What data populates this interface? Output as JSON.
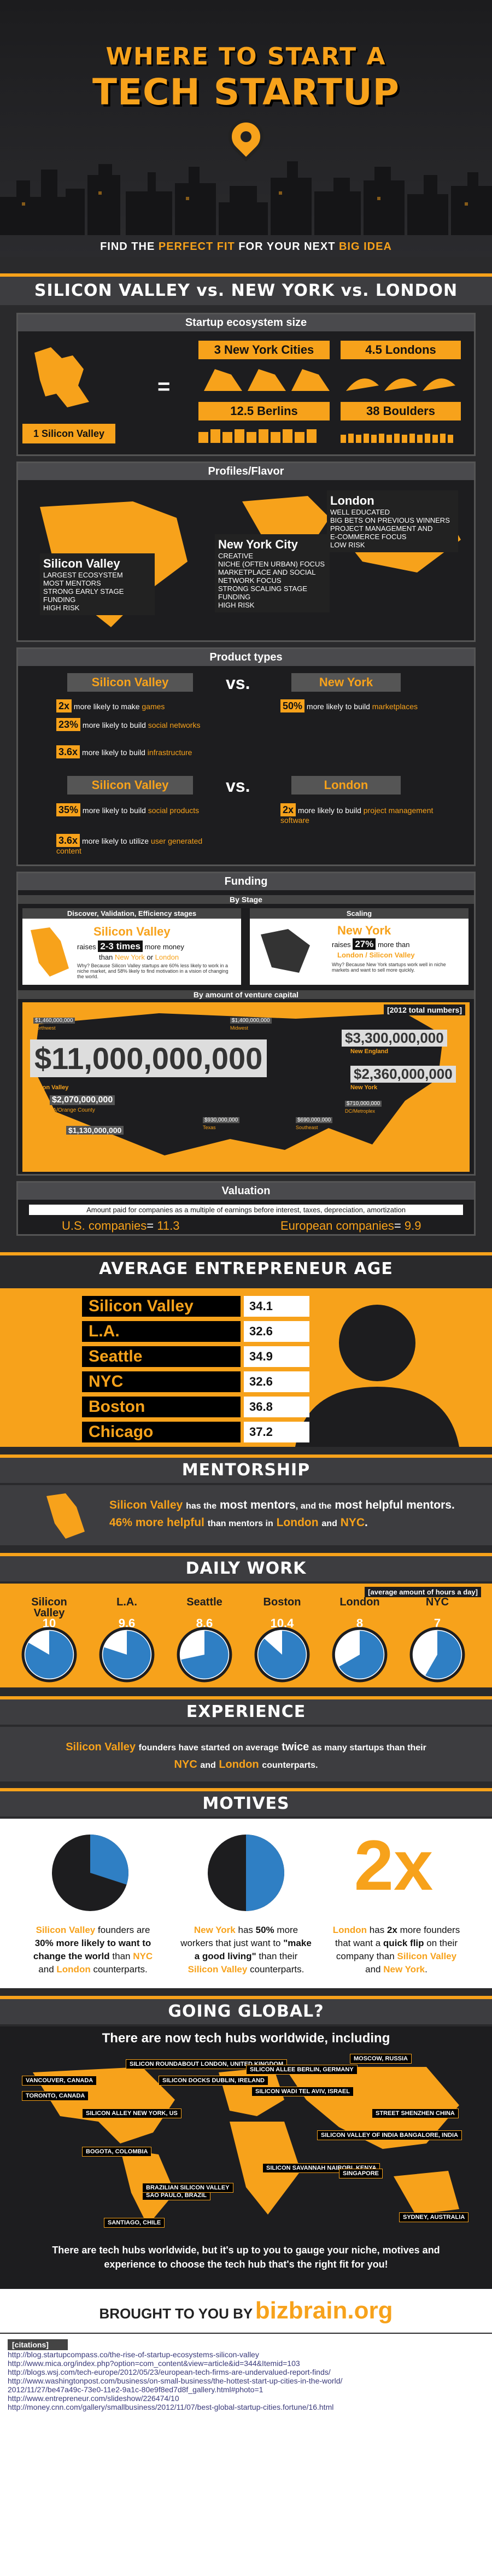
{
  "header": {
    "line1": "WHERE TO START A",
    "line2": "TECH STARTUP",
    "subtitle_pre": "FIND THE ",
    "subtitle_em1": "PERFECT FIT",
    "subtitle_mid": " FOR YOUR NEXT ",
    "subtitle_em2": "BIG IDEA"
  },
  "vs_title": "SILICON VALLEY vs. NEW YORK vs. LONDON",
  "ecosystem": {
    "title": "Startup ecosystem size",
    "nyc": "3 New York Cities",
    "london": "4.5 Londons",
    "berlin": "12.5 Berlins",
    "boulder": "38 Boulders",
    "sv": "1 Silicon Valley",
    "eq": "="
  },
  "profiles": {
    "title": "Profiles/Flavor",
    "london": {
      "name": "London",
      "items": [
        "WELL EDUCATED",
        "BIG BETS ON PREVIOUS WINNERS",
        "PROJECT MANAGEMENT AND",
        "E-COMMERCE FOCUS",
        "LOW RISK"
      ]
    },
    "ny": {
      "name": "New York City",
      "items": [
        "CREATIVE",
        "NICHE (OFTEN URBAN) FOCUS",
        "MARKETPLACE AND SOCIAL",
        "NETWORK FOCUS",
        "STRONG SCALING STAGE",
        "FUNDING",
        "HIGH RISK"
      ]
    },
    "sv": {
      "name": "Silicon Valley",
      "items": [
        "LARGEST ECOSYSTEM",
        "MOST MENTORS",
        "STRONG EARLY STAGE FUNDING",
        "HIGH RISK"
      ]
    }
  },
  "product": {
    "title": "Product types",
    "r1": {
      "left": "Silicon Valley",
      "vs": "vs.",
      "right": "New York",
      "l1n": "2x",
      "l1t": "more likely to make",
      "l1e": "games",
      "l2n": "23%",
      "l2t": "more likely to build",
      "l2e": "social networks",
      "l3n": "3.6x",
      "l3t": "more likely to build",
      "l3e": "infrastructure",
      "r1n": "50%",
      "r1t": "more likely to build",
      "r1e": "marketplaces"
    },
    "r2": {
      "left": "Silicon Valley",
      "vs": "vs.",
      "right": "London",
      "l1n": "35%",
      "l1t": "more likely to build",
      "l1e": "social products",
      "l2n": "3.6x",
      "l2t": "more likely to utilize",
      "l2e": "user generated content",
      "r1n": "2x",
      "r1t": "more likely to build",
      "r1e": "project management software"
    }
  },
  "funding": {
    "title": "Funding",
    "stage": "By Stage",
    "disc": {
      "title": "Discover, Validation, Efficiency stages",
      "name": "Silicon Valley",
      "raises": "raises",
      "amt": "2-3 times",
      "more": "more money",
      "than": "than",
      "ny": "New York",
      "or": "or",
      "lon": "London",
      "note": "Why? Because Silicon Valley startups are 60% less likely to work in a niche market, and 58% likely to find motivation in a vision of changing the world."
    },
    "scale": {
      "title": "Scaling",
      "name": "New York",
      "raises": "raises",
      "amt": "27%",
      "more": "more than",
      "cmp": "London / Silicon Valley",
      "note": "Why? Because New York startups work well in niche markets and want to sell more quickly."
    },
    "vc": {
      "title": "By amount of venture capital",
      "legend": "[2012 total numbers]",
      "total": "$11,000,000,000",
      "ne": "$3,300,000,000",
      "ne_lbl": "New England",
      "ny": "$2,360,000,000",
      "ny_lbl": "New York",
      "sv_lbl": "Silicon Valley",
      "la": "$2,070,000,000",
      "la_lbl": "LA/Orange County",
      "sd": "$1,130,000,000",
      "sd_lbl": "San Diego",
      "nw": "$1,460,000,000",
      "nw_lbl": "Northwest",
      "mw": "$1,400,000,000",
      "mw_lbl": "Midwest",
      "tx": "$930,000,000",
      "tx_lbl": "Texas",
      "se": "$690,000,000",
      "se_lbl": "Southeast",
      "dc": "$710,000,000",
      "dc_lbl": "DC/Metroplex"
    }
  },
  "valuation": {
    "title": "Valuation",
    "desc": "Amount paid for companies as a multiple of earnings before interest, taxes, depreciation, amortization",
    "us": "U.S. companies",
    "us_v": "11.3",
    "eu": "European companies",
    "eu_v": "9.9",
    "eq": "="
  },
  "age": {
    "title": "AVERAGE ENTREPRENEUR AGE",
    "rows": [
      {
        "city": "Silicon Valley",
        "v": "34.1"
      },
      {
        "city": "L.A.",
        "v": "32.6"
      },
      {
        "city": "Seattle",
        "v": "34.9"
      },
      {
        "city": "NYC",
        "v": "32.6"
      },
      {
        "city": "Boston",
        "v": "36.8"
      },
      {
        "city": "Chicago",
        "v": "37.2"
      }
    ]
  },
  "mentorship": {
    "title": "MENTORSHIP",
    "sv": "Silicon Valley",
    "t1": "has the",
    "m1": "most mentors",
    "t2": ", and the",
    "m2": "most helpful mentors",
    "t3": ".",
    "pct": "46%",
    "t4": "more helpful",
    "t5": "than mentors in",
    "lon": "London",
    "and": "and",
    "nyc": "NYC",
    "dot": "."
  },
  "work": {
    "title": "DAILY WORK",
    "legend": "[average amount of hours a day]",
    "items": [
      {
        "city": "Silicon Valley",
        "v": "10",
        "h": 10
      },
      {
        "city": "L.A.",
        "v": "9.6",
        "h": 9.6
      },
      {
        "city": "Seattle",
        "v": "8.6",
        "h": 8.6
      },
      {
        "city": "Boston",
        "v": "10.4",
        "h": 10.4
      },
      {
        "city": "London",
        "v": "8",
        "h": 8
      },
      {
        "city": "NYC",
        "v": "7",
        "h": 7
      }
    ]
  },
  "experience": {
    "title": "EXPERIENCE",
    "sv": "Silicon Valley",
    "t1": "founders have started on average",
    "tw": "twice",
    "t2": "as many startups than their",
    "nyc": "NYC",
    "and": "and",
    "lon": "London",
    "t3": "counterparts."
  },
  "motives": {
    "title": "MOTIVES",
    "m1": {
      "sv": "Silicon Valley",
      "t1": "founders are",
      "p": "30%",
      "t2": "more likely to want to",
      "e": "change the world",
      "t3": "than",
      "nyc": "NYC",
      "and": "and",
      "lon": "London",
      "t4": "counterparts.",
      "share": 0.7
    },
    "m2": {
      "ny": "New York",
      "t1": "has",
      "p": "50%",
      "t2": "more workers that just want to",
      "e": "\"make a good living\"",
      "t3": "than their",
      "sv": "Silicon Valley",
      "t4": "counterparts.",
      "share": 0.5
    },
    "m3": {
      "big": "2x",
      "lon": "London",
      "t1": "has",
      "x": "2x",
      "t2": "more founders that want a",
      "e": "quick flip",
      "t3": "on their company than",
      "sv": "Silicon Valley",
      "and": "and",
      "ny": "New York",
      "dot": "."
    }
  },
  "global": {
    "title": "GOING GLOBAL?",
    "sub": "There are now tech hubs worldwide, including",
    "hubs": [
      "SILICON ROUNDABOUT LONDON, UNITED KINGDOM",
      "SILICON WADI TEL AVIV, ISRAEL",
      "VANCOUVER, CANADA",
      "TORONTO, CANADA",
      "SILICON VALLEY OF INDIA BANGALORE, INDIA",
      "SILICON ALLEY NEW YORK, US",
      "STREET SHENZHEN CHINA",
      "SILICON DOCKS DUBLIN, IRELAND",
      "SILICON ALLEE BERLIN, GERMANY",
      "MOSCOW, RUSSIA",
      "BOGOTA, COLOMBIA",
      "SILICON SAVANNAH NAIROBI, KENYA",
      "SANTIAGO, CHILE",
      "SAO PAULO, BRAZIL",
      "BRAZILIAN SILICON VALLEY",
      "SYDNEY, AUSTRALIA",
      "SINGAPORE"
    ],
    "footer": "There are tech hubs worldwide, but it's up to you to gauge your niche, motives and experience to choose the tech hub that's the right fit for you!"
  },
  "brought": {
    "pre": "BROUGHT TO YOU BY",
    "brand": "bizbrain.org"
  },
  "citations": {
    "title": "[citations]",
    "items": [
      "http://blog.startupcompass.co/the-rise-of-startup-ecosystems-silicon-valley",
      "http://www.mica.org/index.php?option=com_content&view=article&id=344&Itemid=103",
      "http://blogs.wsj.com/tech-europe/2012/05/23/european-tech-firms-are-undervalued-report-finds/",
      "http://www.washingtonpost.com/business/on-small-business/the-hottest-start-up-cities-in-the-world/",
      "2012/11/27/be47a49c-73e0-11e2-9a1c-80e9f8ed7d8f_gallery.html#photo=1",
      "http://www.entrepreneur.com/slideshow/226474/10",
      "http://money.cnn.com/gallery/smallbusiness/2012/11/07/best-global-startup-cities.fortune/16.html"
    ]
  },
  "colors": {
    "accent": "#f7a21b",
    "bg": "#2a2a2c"
  }
}
